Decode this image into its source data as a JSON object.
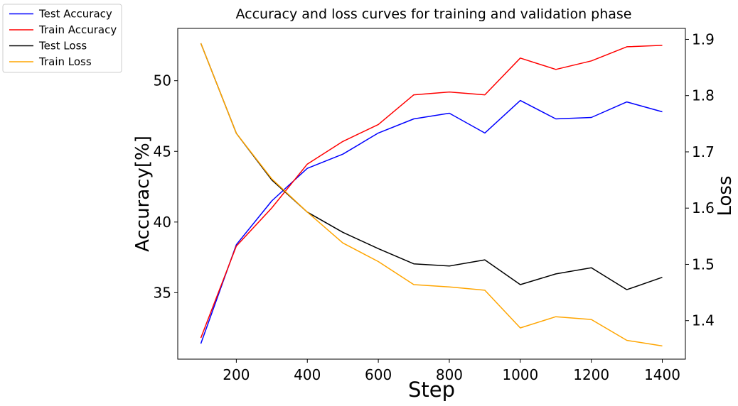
{
  "chart_data": {
    "type": "line",
    "title": "Accuracy and loss curves for training and validation phase",
    "xlabel": "Step",
    "ylabel_left": "Accuracy[%]",
    "ylabel_right": "Loss",
    "x": [
      100,
      200,
      300,
      400,
      500,
      600,
      700,
      800,
      900,
      1000,
      1100,
      1200,
      1300,
      1400
    ],
    "xlim": [
      35,
      1465
    ],
    "ylim_left": [
      30.3,
      53.7
    ],
    "ylim_right": [
      1.3315,
      1.9195
    ],
    "xticks": [
      200,
      400,
      600,
      800,
      1000,
      1200,
      1400
    ],
    "yticks_left": [
      35,
      40,
      45,
      50
    ],
    "yticks_right": [
      1.4,
      1.5,
      1.6,
      1.7,
      1.8,
      1.9
    ],
    "grid": false,
    "legend_position": "outside-top-left",
    "series": [
      {
        "name": "Test Accuracy",
        "axis": "left",
        "color": "#0000ff",
        "values": [
          31.4,
          38.4,
          41.5,
          43.8,
          44.8,
          46.3,
          47.3,
          47.7,
          46.3,
          48.6,
          47.3,
          47.4,
          48.5,
          47.8
        ]
      },
      {
        "name": "Train Accuracy",
        "axis": "left",
        "color": "#ff0000",
        "values": [
          31.8,
          38.3,
          41.0,
          44.1,
          45.7,
          46.9,
          49.0,
          49.2,
          49.0,
          51.6,
          50.8,
          51.4,
          52.4,
          52.5
        ]
      },
      {
        "name": "Test Loss",
        "axis": "right",
        "color": "#000000",
        "values": [
          1.893,
          1.733,
          1.65,
          1.593,
          1.557,
          1.528,
          1.501,
          1.497,
          1.508,
          1.464,
          1.483,
          1.494,
          1.455,
          1.477
        ]
      },
      {
        "name": "Train Loss",
        "axis": "right",
        "color": "#ffa500",
        "values": [
          1.893,
          1.733,
          1.652,
          1.593,
          1.538,
          1.505,
          1.464,
          1.46,
          1.454,
          1.387,
          1.407,
          1.402,
          1.365,
          1.355
        ]
      }
    ]
  }
}
